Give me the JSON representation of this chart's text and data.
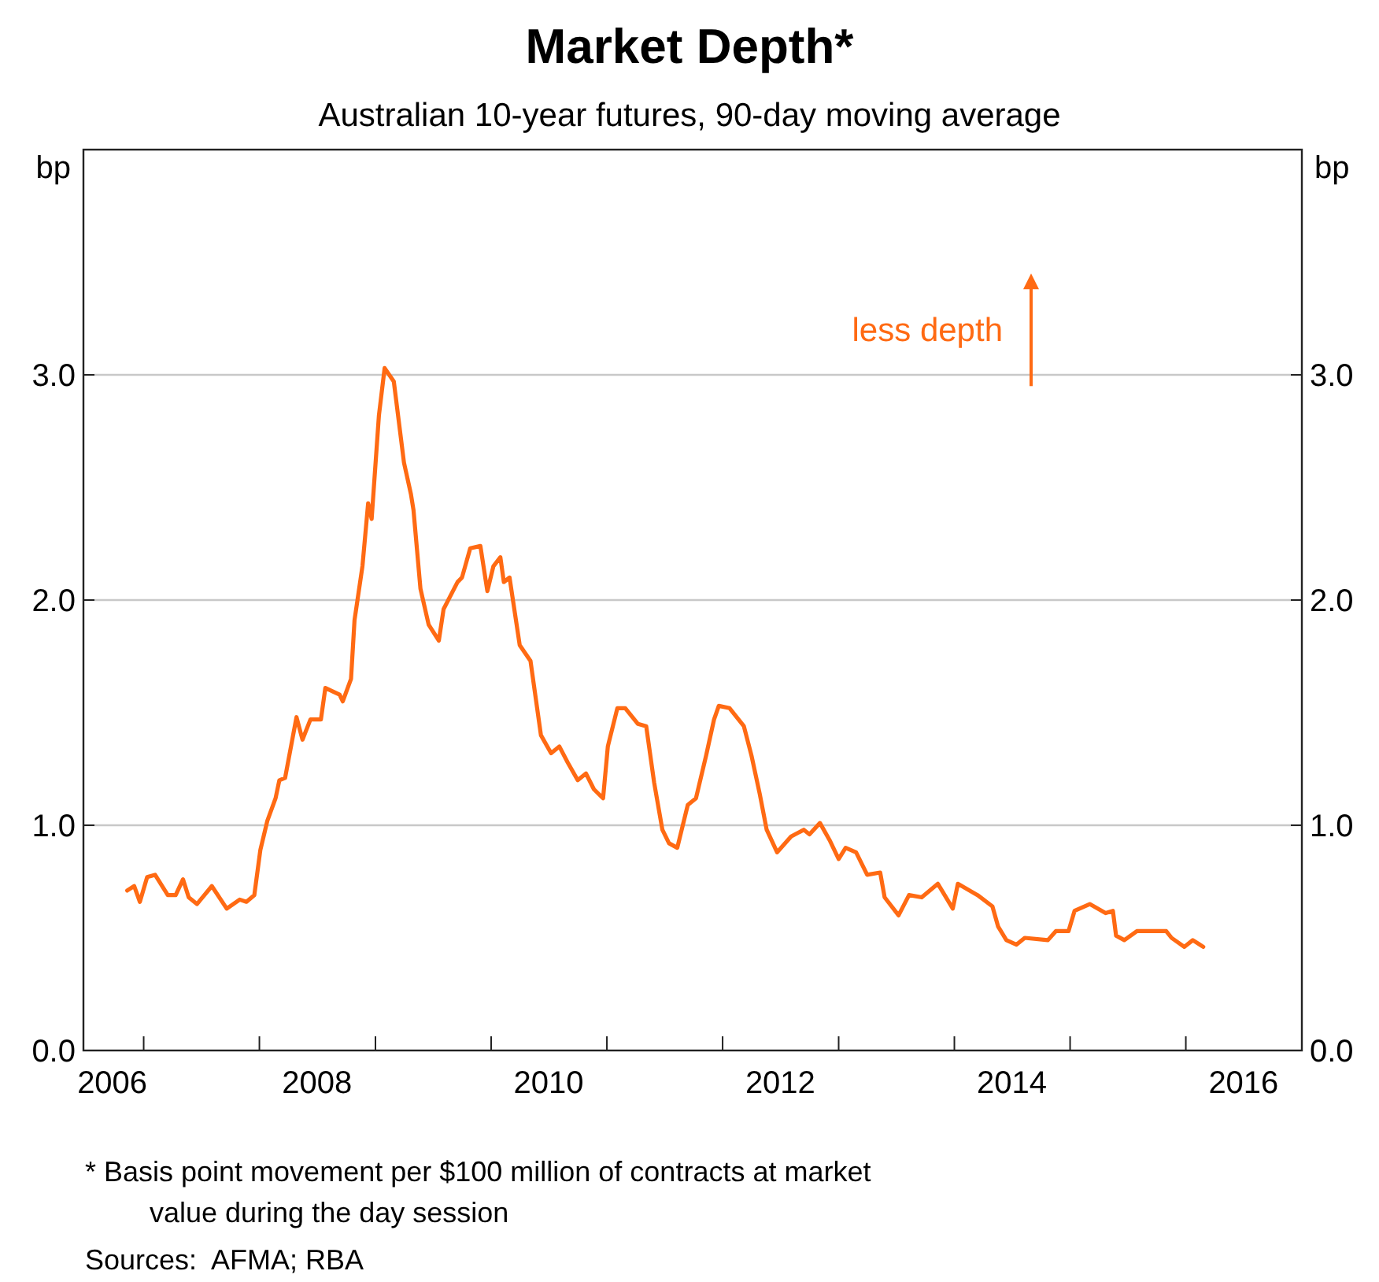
{
  "chart_data": {
    "type": "line",
    "title": "Market Depth*",
    "subtitle": "Australian 10-year futures, 90-day moving average",
    "ylabel": "bp",
    "y2label": "bp",
    "annotations": [
      "less depth",
      "* Basis point movement per $100 million of contracts at market value during the day session",
      "Sources:  AFMA; RBA"
    ],
    "xlim": [
      "2006-06-25",
      "2017-01-01"
    ],
    "xticks": [
      {
        "value": "2006-09-24",
        "label": "2006"
      },
      {
        "value": "2007-01-01",
        "label": null
      },
      {
        "value": "2008-01-01",
        "label": null
      },
      {
        "value": "2008-07-01",
        "label": "2008"
      },
      {
        "value": "2009-01-01",
        "label": null
      },
      {
        "value": "2010-01-01",
        "label": null
      },
      {
        "value": "2010-07-01",
        "label": "2010"
      },
      {
        "value": "2011-01-01",
        "label": null
      },
      {
        "value": "2012-01-01",
        "label": null
      },
      {
        "value": "2012-07-01",
        "label": "2012"
      },
      {
        "value": "2013-01-01",
        "label": null
      },
      {
        "value": "2014-01-01",
        "label": null
      },
      {
        "value": "2014-07-01",
        "label": "2014"
      },
      {
        "value": "2015-01-01",
        "label": null
      },
      {
        "value": "2016-01-01",
        "label": null
      },
      {
        "value": "2016-07-01",
        "label": "2016"
      }
    ],
    "ylim": [
      0,
      4
    ],
    "yticks": [
      {
        "value": 0,
        "label": "0.0"
      },
      {
        "value": 1,
        "label": "1.0"
      },
      {
        "value": 2,
        "label": "2.0"
      },
      {
        "value": 3,
        "label": "3.0"
      }
    ],
    "y2lim": [
      0,
      4
    ],
    "y2ticks": [
      {
        "value": 0,
        "label": "0.0"
      },
      {
        "value": 1,
        "label": "1.0"
      },
      {
        "value": 2,
        "label": "2.0"
      },
      {
        "value": 3,
        "label": "3.0"
      }
    ],
    "grid": "y",
    "line_style": "solid",
    "marker": "none",
    "x": [
      "2006-11-10",
      "2006-12-02",
      "2006-12-20",
      "2007-01-12",
      "2007-02-06",
      "2007-03-18",
      "2007-04-12",
      "2007-05-05",
      "2007-05-23",
      "2007-06-18",
      "2007-08-04",
      "2007-09-20",
      "2007-10-31",
      "2007-11-21",
      "2007-12-16",
      "2008-01-04",
      "2008-01-26",
      "2008-02-21",
      "2008-03-04",
      "2008-03-22",
      "2008-04-27",
      "2008-05-16",
      "2008-06-10",
      "2008-07-13",
      "2008-07-27",
      "2008-09-10",
      "2008-09-20",
      "2008-10-16",
      "2008-10-27",
      "2008-11-21",
      "2008-12-09",
      "2008-12-20",
      "2009-01-12",
      "2009-01-30",
      "2009-02-28",
      "2009-04-01",
      "2009-04-23",
      "2009-05-01",
      "2009-05-23",
      "2009-06-18",
      "2009-07-20",
      "2009-08-04",
      "2009-09-17",
      "2009-10-01",
      "2009-10-27",
      "2009-11-28",
      "2009-12-20",
      "2010-01-08",
      "2010-01-30",
      "2010-02-10",
      "2010-02-28",
      "2010-04-01",
      "2010-05-05",
      "2010-06-07",
      "2010-07-09",
      "2010-08-04",
      "2010-08-30",
      "2010-10-01",
      "2010-10-27",
      "2010-11-21",
      "2010-12-20",
      "2011-01-04",
      "2011-02-03",
      "2011-02-28",
      "2011-04-09",
      "2011-05-05",
      "2011-05-30",
      "2011-06-25",
      "2011-07-16",
      "2011-08-11",
      "2011-09-13",
      "2011-10-09",
      "2011-11-10",
      "2011-12-05",
      "2011-12-20",
      "2012-01-23",
      "2012-03-08",
      "2012-04-01",
      "2012-04-27",
      "2012-05-19",
      "2012-06-21",
      "2012-08-04",
      "2012-09-13",
      "2012-10-01",
      "2012-11-03",
      "2012-12-05",
      "2013-01-01",
      "2013-01-23",
      "2013-02-25",
      "2013-04-01",
      "2013-05-12",
      "2013-05-26",
      "2013-07-09",
      "2013-08-11",
      "2013-09-20",
      "2013-11-10",
      "2013-12-27",
      "2014-01-12",
      "2014-03-15",
      "2014-05-01",
      "2014-05-19",
      "2014-06-14",
      "2014-07-16",
      "2014-08-11",
      "2014-10-23",
      "2014-11-17",
      "2014-12-27",
      "2015-01-15",
      "2015-03-04",
      "2015-04-23",
      "2015-05-16",
      "2015-05-26",
      "2015-06-21",
      "2015-07-31",
      "2015-09-10",
      "2015-10-31",
      "2015-11-17",
      "2015-12-27",
      "2016-01-23",
      "2016-02-25"
    ],
    "series": [
      {
        "color": "#ff6a13",
        "values": [
          0.71,
          0.73,
          0.66,
          0.77,
          0.78,
          0.69,
          0.69,
          0.76,
          0.68,
          0.65,
          0.73,
          0.63,
          0.67,
          0.66,
          0.69,
          0.89,
          1.02,
          1.12,
          1.2,
          1.21,
          1.48,
          1.38,
          1.47,
          1.47,
          1.61,
          1.58,
          1.55,
          1.65,
          1.91,
          2.15,
          2.43,
          2.36,
          2.82,
          3.03,
          2.97,
          2.61,
          2.47,
          2.4,
          2.05,
          1.89,
          1.82,
          1.96,
          2.08,
          2.1,
          2.23,
          2.24,
          2.04,
          2.15,
          2.19,
          2.08,
          2.1,
          1.8,
          1.73,
          1.4,
          1.32,
          1.35,
          1.28,
          1.2,
          1.23,
          1.16,
          1.12,
          1.35,
          1.52,
          1.52,
          1.45,
          1.44,
          1.19,
          0.98,
          0.92,
          0.9,
          1.09,
          1.12,
          1.31,
          1.47,
          1.53,
          1.52,
          1.44,
          1.31,
          1.14,
          0.98,
          0.88,
          0.95,
          0.98,
          0.96,
          1.01,
          0.93,
          0.85,
          0.9,
          0.88,
          0.78,
          0.79,
          0.68,
          0.6,
          0.69,
          0.68,
          0.74,
          0.63,
          0.74,
          0.69,
          0.64,
          0.55,
          0.49,
          0.47,
          0.5,
          0.49,
          0.53,
          0.53,
          0.62,
          0.65,
          0.61,
          0.62,
          0.51,
          0.49,
          0.53,
          0.53,
          0.53,
          0.5,
          0.46,
          0.49,
          0.46
        ]
      }
    ]
  }
}
